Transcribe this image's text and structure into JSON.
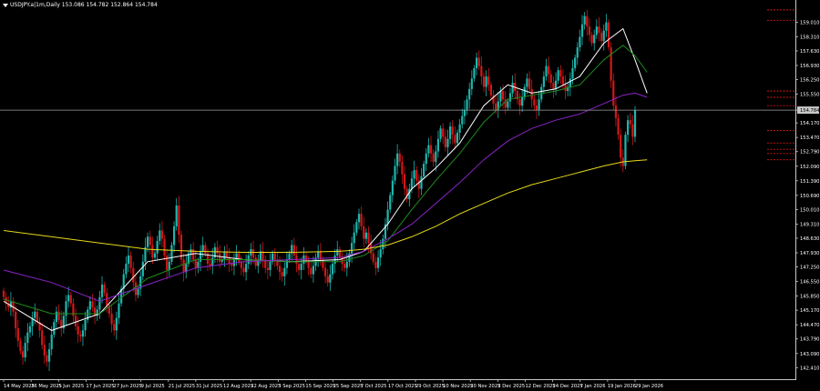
{
  "window": {
    "symbol_text": "USDJPY.a|1m,Daily  153.086 154.782 152.864 154.784"
  },
  "colors": {
    "background": "#000000",
    "axis": "#c8c8c8",
    "text": "#ffffff",
    "bull": "#1fb5ad",
    "bear": "#d01818",
    "ma_fast": "#ffffff",
    "ma_mid": "#1e8a1e",
    "ma_slow": "#8a24c8",
    "ma_long": "#e6d81a",
    "hline": "#a0a0a0",
    "price_tag_bg": "#c8c8c8",
    "level_marker": "#d01818"
  },
  "chart_data": {
    "type": "candlestick",
    "title": "",
    "xlabel": "",
    "ylabel": "",
    "ylim": [
      141.9,
      159.9
    ],
    "grid": false,
    "current_price_line": 154.784,
    "y_ticks": [
      "159.010",
      "158.310",
      "157.630",
      "156.930",
      "156.250",
      "155.550",
      "154.784",
      "154.170",
      "153.470",
      "152.790",
      "152.090",
      "151.390",
      "150.690",
      "150.010",
      "149.310",
      "148.630",
      "147.930",
      "147.250",
      "146.550",
      "145.850",
      "145.170",
      "144.470",
      "143.790",
      "143.090",
      "142.410"
    ],
    "x_labels": [
      "14 May 2025",
      "26 May 2025",
      "5 Jun 2025",
      "17 Jun 2025",
      "27 Jun 2025",
      "9 Jul 2025",
      "21 Jul 2025",
      "31 Jul 2025",
      "12 Aug 2025",
      "22 Aug 2025",
      "3 Sep 2025",
      "15 Sep 2025",
      "25 Sep 2025",
      "7 Oct 2025",
      "17 Oct 2025",
      "29 Oct 2025",
      "10 Nov 2025",
      "20 Nov 2025",
      "2 Dec 2025",
      "12 Dec 2025",
      "24 Dec 2025",
      "7 Jan 2026",
      "19 Jan 2026",
      "29 Jan 2026"
    ],
    "closes": [
      145.8,
      145.5,
      145.3,
      145.6,
      145.1,
      144.3,
      143.7,
      143.2,
      142.9,
      143.6,
      144.1,
      144.4,
      144.8,
      145.1,
      144.6,
      144.2,
      143.5,
      143.0,
      142.7,
      143.3,
      144.0,
      144.6,
      145.1,
      144.7,
      144.3,
      144.9,
      145.6,
      145.9,
      145.5,
      144.9,
      144.4,
      144.0,
      143.9,
      144.2,
      144.7,
      145.2,
      145.6,
      145.3,
      144.9,
      145.2,
      145.8,
      146.4,
      146.0,
      145.4,
      145.0,
      144.5,
      144.2,
      144.8,
      145.5,
      146.2,
      146.9,
      147.4,
      147.8,
      147.2,
      146.5,
      145.9,
      146.2,
      146.8,
      147.5,
      148.2,
      148.7,
      148.3,
      147.7,
      147.9,
      148.5,
      149.0,
      148.6,
      147.8,
      147.1,
      147.5,
      148.3,
      149.2,
      150.2,
      148.8,
      147.6,
      147.0,
      147.4,
      147.9,
      148.1,
      147.6,
      147.2,
      147.5,
      148.0,
      148.3,
      147.9,
      147.4,
      147.3,
      147.7,
      148.2,
      147.9,
      147.5,
      147.6,
      148.0,
      147.7,
      147.4,
      147.3,
      147.6,
      147.9,
      147.5,
      147.2,
      147.0,
      147.4,
      147.8,
      148.1,
      147.7,
      147.3,
      147.6,
      148.0,
      147.6,
      147.2,
      147.1,
      147.5,
      147.9,
      147.6,
      147.3,
      147.0,
      146.8,
      147.2,
      147.6,
      147.9,
      148.3,
      147.8,
      147.4,
      147.1,
      147.4,
      147.8,
      147.5,
      147.2,
      146.9,
      147.3,
      147.7,
      148.0,
      147.6,
      147.2,
      146.8,
      146.5,
      146.9,
      147.4,
      147.8,
      148.1,
      147.7,
      147.4,
      147.2,
      147.5,
      147.9,
      148.4,
      148.9,
      149.4,
      149.8,
      149.2,
      148.6,
      148.9,
      148.4,
      147.9,
      147.5,
      147.2,
      147.7,
      148.1,
      148.6,
      149.3,
      150.0,
      150.7,
      151.4,
      152.1,
      152.7,
      152.3,
      151.7,
      151.0,
      150.5,
      151.0,
      151.5,
      151.9,
      151.4,
      151.0,
      151.6,
      152.2,
      152.7,
      153.1,
      152.7,
      152.3,
      152.8,
      153.4,
      153.9,
      153.5,
      153.0,
      153.4,
      154.0,
      153.6,
      153.2,
      153.7,
      154.1,
      154.5,
      154.8,
      155.3,
      155.8,
      156.3,
      156.8,
      157.3,
      156.9,
      156.4,
      155.9,
      156.4,
      156.0,
      155.5,
      155.1,
      154.8,
      155.2,
      155.7,
      155.3,
      154.9,
      155.2,
      155.6,
      156.1,
      155.7,
      155.3,
      155.0,
      155.4,
      155.9,
      156.3,
      155.8,
      155.3,
      155.0,
      154.8,
      155.3,
      155.9,
      156.4,
      156.9,
      156.5,
      156.1,
      155.8,
      156.2,
      156.7,
      156.4,
      156.0,
      155.7,
      155.9,
      156.3,
      156.8,
      157.3,
      157.8,
      158.3,
      158.9,
      159.3,
      158.8,
      158.4,
      158.0,
      158.4,
      158.8,
      158.5,
      158.1,
      158.6,
      159.0,
      157.8,
      156.2,
      155.0,
      154.4,
      153.6,
      152.5,
      152.1,
      153.6,
      154.3,
      154.1,
      153.5,
      154.78
    ],
    "ma_overlays": {
      "ma_fast": [
        [
          0,
          145.6
        ],
        [
          20,
          144.2
        ],
        [
          40,
          145.0
        ],
        [
          60,
          147.5
        ],
        [
          80,
          147.9
        ],
        [
          100,
          147.6
        ],
        [
          120,
          147.5
        ],
        [
          140,
          147.6
        ],
        [
          150,
          148.0
        ],
        [
          160,
          149.3
        ],
        [
          170,
          151.0
        ],
        [
          180,
          152.0
        ],
        [
          190,
          153.2
        ],
        [
          200,
          155.0
        ],
        [
          210,
          156.0
        ],
        [
          220,
          155.6
        ],
        [
          230,
          155.8
        ],
        [
          240,
          156.4
        ],
        [
          250,
          158.0
        ],
        [
          258,
          158.7
        ],
        [
          263,
          157.2
        ],
        [
          268,
          155.6
        ]
      ],
      "ma_mid": [
        [
          0,
          145.7
        ],
        [
          20,
          145.0
        ],
        [
          40,
          145.0
        ],
        [
          60,
          146.7
        ],
        [
          80,
          147.6
        ],
        [
          100,
          147.6
        ],
        [
          120,
          147.5
        ],
        [
          140,
          147.5
        ],
        [
          150,
          147.8
        ],
        [
          160,
          148.5
        ],
        [
          170,
          150.0
        ],
        [
          180,
          151.4
        ],
        [
          190,
          152.7
        ],
        [
          200,
          154.2
        ],
        [
          210,
          155.3
        ],
        [
          220,
          155.5
        ],
        [
          230,
          155.7
        ],
        [
          240,
          156.0
        ],
        [
          250,
          157.2
        ],
        [
          258,
          157.9
        ],
        [
          263,
          157.4
        ],
        [
          268,
          156.6
        ]
      ],
      "ma_slow": [
        [
          0,
          147.1
        ],
        [
          20,
          146.5
        ],
        [
          40,
          145.6
        ],
        [
          60,
          146.4
        ],
        [
          80,
          147.2
        ],
        [
          100,
          147.5
        ],
        [
          120,
          147.6
        ],
        [
          140,
          147.7
        ],
        [
          150,
          148.0
        ],
        [
          160,
          148.6
        ],
        [
          170,
          149.3
        ],
        [
          180,
          150.3
        ],
        [
          190,
          151.3
        ],
        [
          200,
          152.4
        ],
        [
          210,
          153.3
        ],
        [
          220,
          153.9
        ],
        [
          230,
          154.3
        ],
        [
          240,
          154.6
        ],
        [
          250,
          155.1
        ],
        [
          258,
          155.5
        ],
        [
          263,
          155.6
        ],
        [
          268,
          155.4
        ]
      ],
      "ma_long": [
        [
          0,
          149.0
        ],
        [
          20,
          148.7
        ],
        [
          40,
          148.4
        ],
        [
          60,
          148.1
        ],
        [
          80,
          148.0
        ],
        [
          100,
          147.95
        ],
        [
          120,
          147.95
        ],
        [
          140,
          148.0
        ],
        [
          150,
          148.1
        ],
        [
          160,
          148.3
        ],
        [
          170,
          148.7
        ],
        [
          180,
          149.2
        ],
        [
          190,
          149.8
        ],
        [
          200,
          150.3
        ],
        [
          210,
          150.8
        ],
        [
          220,
          151.2
        ],
        [
          230,
          151.5
        ],
        [
          240,
          151.8
        ],
        [
          250,
          152.1
        ],
        [
          258,
          152.3
        ],
        [
          263,
          152.35
        ],
        [
          268,
          152.4
        ]
      ]
    },
    "level_markers": [
      159.6,
      159.1,
      155.7,
      155.4,
      155.0,
      153.8,
      153.2,
      152.9,
      152.7,
      152.4
    ]
  }
}
